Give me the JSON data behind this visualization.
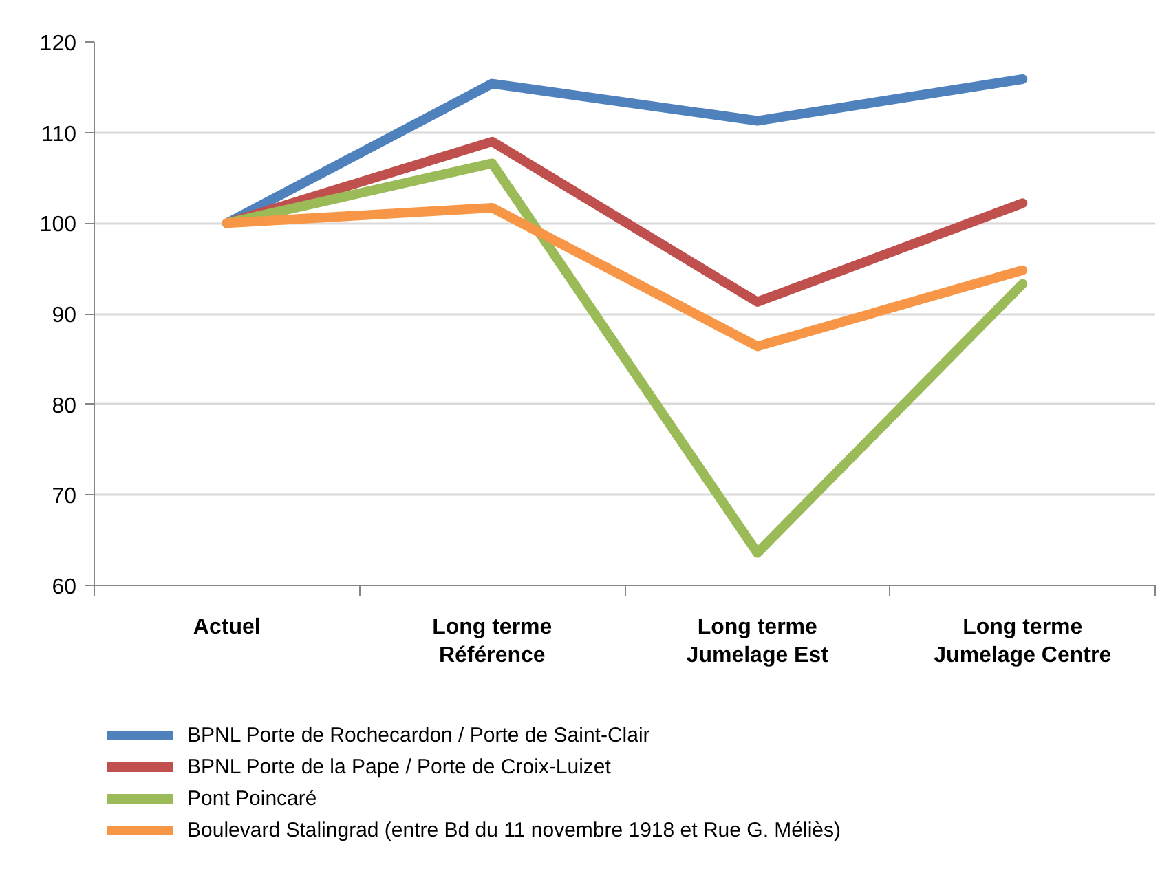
{
  "chart_data": {
    "type": "line",
    "categories": [
      "Actuel",
      "Long terme\nRéférence",
      "Long terme\nJumelage Est",
      "Long terme\nJumelage Centre"
    ],
    "series": [
      {
        "name": "BPNL Porte de Rochecardon / Porte de Saint-Clair",
        "color": "#4f81bd",
        "values": [
          100,
          115.4,
          111.3,
          115.9
        ]
      },
      {
        "name": "BPNL Porte de la Pape / Porte de Croix-Luizet",
        "color": "#c0504d",
        "values": [
          100,
          109.0,
          91.3,
          102.2
        ]
      },
      {
        "name": "Pont Poincaré",
        "color": "#9bbb59",
        "values": [
          100,
          106.6,
          63.6,
          93.3
        ]
      },
      {
        "name": "Boulevard Stalingrad (entre Bd du 11 novembre 1918 et Rue G. Méliès)",
        "color": "#f79646",
        "values": [
          100,
          101.7,
          86.4,
          94.8
        ]
      }
    ],
    "ylim": [
      60,
      120
    ],
    "yticks": [
      60,
      70,
      80,
      90,
      100,
      110,
      120
    ],
    "grid": "y",
    "legend": "bottom"
  }
}
